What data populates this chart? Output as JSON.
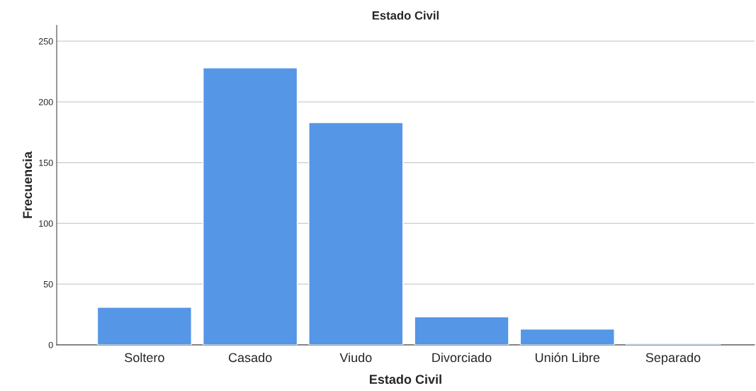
{
  "chart_data": {
    "type": "bar",
    "title": "Estado Civil",
    "xlabel": "Estado Civil",
    "ylabel": "Frecuencia",
    "categories": [
      "Soltero",
      "Casado",
      "Viudo",
      "Divorciado",
      "Unión Libre",
      "Separado"
    ],
    "values": [
      31,
      228,
      183,
      23,
      13,
      1
    ],
    "color": "#5596e6",
    "ylim": [
      0,
      263
    ],
    "yticks": [
      0,
      50,
      100,
      150,
      200,
      250
    ],
    "grid": "y",
    "legend": false
  }
}
